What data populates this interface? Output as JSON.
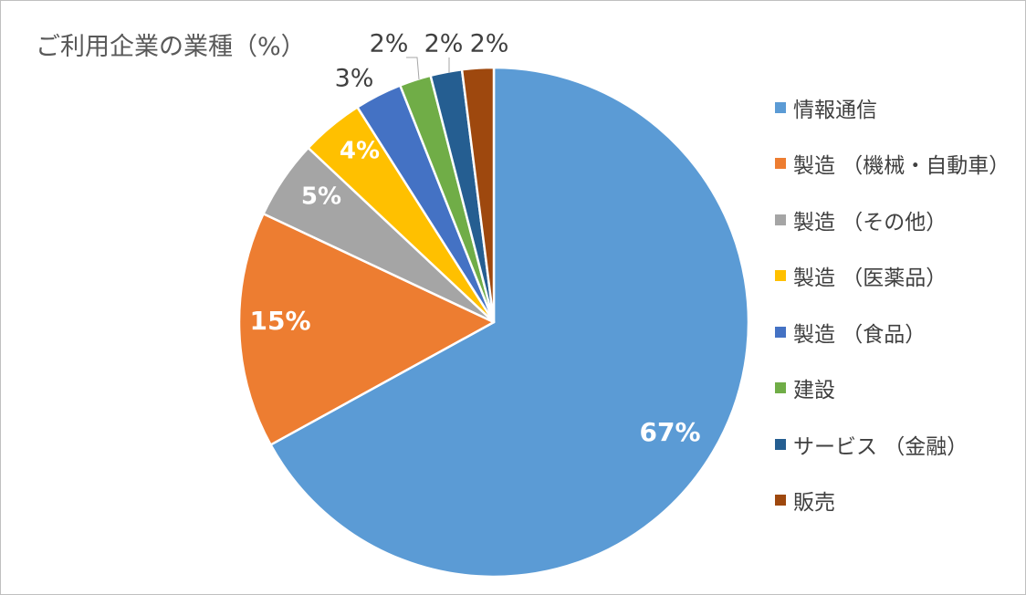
{
  "chart_data": {
    "type": "pie",
    "title": "ご利用企業の業種（%）",
    "start_angle_deg": 0,
    "direction": "clockwise",
    "legend_position": "right",
    "slices": [
      {
        "label": "情報通信",
        "value": 67,
        "display": "67%",
        "color": "#5b9bd5",
        "label_style": "inside-bold-white"
      },
      {
        "label": "製造 （機械・自動車）",
        "value": 15,
        "display": "15%",
        "color": "#ed7d31",
        "label_style": "inside-bold-white"
      },
      {
        "label": "製造 （その他）",
        "value": 5,
        "display": "5%",
        "color": "#a5a5a5",
        "label_style": "inside-bold-white"
      },
      {
        "label": "製造 （医薬品）",
        "value": 4,
        "display": "4%",
        "color": "#ffc000",
        "label_style": "inside-bold-white"
      },
      {
        "label": "製造 （食品）",
        "value": 3,
        "display": "3%",
        "color": "#4472c4",
        "label_style": "outside"
      },
      {
        "label": "建設",
        "value": 2,
        "display": "2%",
        "color": "#70ad47",
        "label_style": "outside-leader"
      },
      {
        "label": "サービス （金融）",
        "value": 2,
        "display": "2%",
        "color": "#255e91",
        "label_style": "outside-leader"
      },
      {
        "label": "販売",
        "value": 2,
        "display": "2%",
        "color": "#9e480e",
        "label_style": "outside"
      }
    ]
  }
}
